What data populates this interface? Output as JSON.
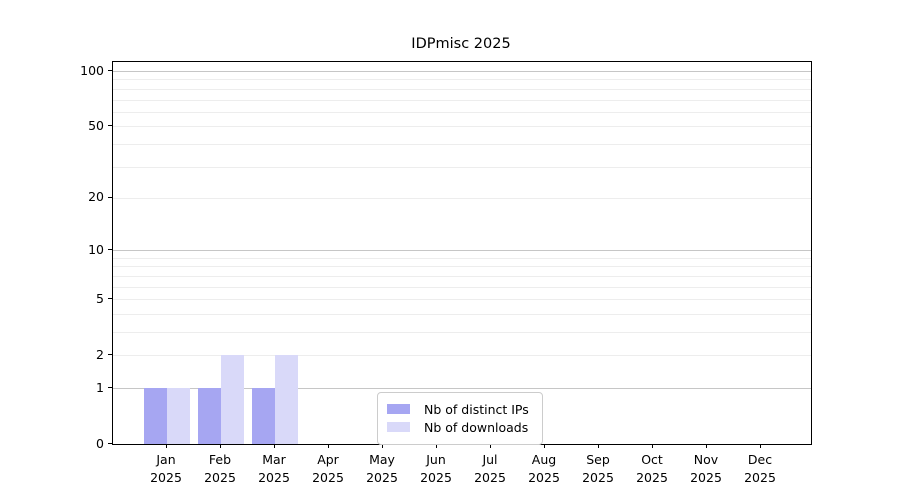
{
  "figure": {
    "background": "#ffffff"
  },
  "chart_data": {
    "type": "bar",
    "title": "IDPmisc 2025",
    "categories": [
      "Jan",
      "Feb",
      "Mar",
      "Apr",
      "May",
      "Jun",
      "Jul",
      "Aug",
      "Sep",
      "Oct",
      "Nov",
      "Dec"
    ],
    "x_tick_year": "2025",
    "series": [
      {
        "name": "Nb of distinct IPs",
        "color": "#a6a6f2",
        "values": [
          1,
          1,
          1,
          0,
          0,
          0,
          0,
          0,
          0,
          0,
          0,
          0
        ]
      },
      {
        "name": "Nb of downloads",
        "color": "#d9d9f9",
        "values": [
          1,
          2,
          2,
          0,
          0,
          0,
          0,
          0,
          0,
          0,
          0,
          0
        ]
      }
    ],
    "y_scale": "log1p",
    "ylim": [
      0,
      100
    ],
    "y_ticks": [
      0,
      1,
      2,
      5,
      10,
      20,
      50,
      100
    ],
    "y_gridlines": {
      "major": [
        1,
        10,
        100
      ],
      "minor": [
        2,
        3,
        4,
        5,
        6,
        7,
        8,
        9,
        20,
        30,
        40,
        50,
        60,
        70,
        80,
        90
      ]
    },
    "grid": true,
    "legend": {
      "position": "lower center",
      "entries": [
        "Nb of distinct IPs",
        "Nb of downloads"
      ]
    }
  }
}
